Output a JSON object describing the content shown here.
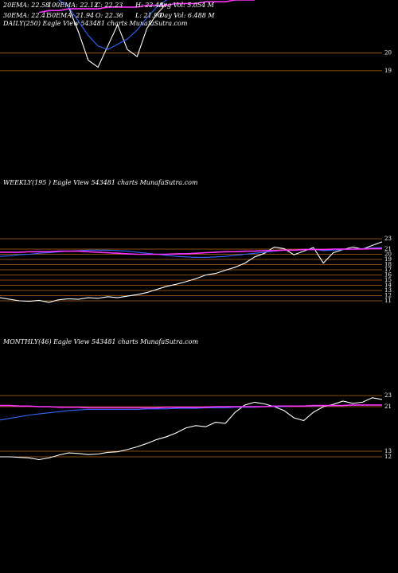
{
  "chart_data": [
    {
      "type": "line",
      "title": "DAILY(250) Eagle View 543481 charts MunafaSutra.com",
      "annotations": [
        [
          "20EMA: 22.58",
          "100EMA: 22.12",
          "C: 22.23",
          "H: 22.48",
          "Avg Vol: 5.054 M"
        ],
        [
          "30EMA: 22.41",
          "50EMA: 21.94",
          "O: 22.36",
          "L: 21.90",
          "Day Vol: 6.488 M"
        ]
      ],
      "ylim": [
        18.5,
        23
      ],
      "yticks": [
        20,
        19
      ],
      "series": [
        {
          "name": "Price",
          "color": "#ffffff",
          "values": [
            null,
            null,
            null,
            null,
            null,
            null,
            null,
            22.6,
            21.2,
            19.6,
            19.2,
            20.4,
            21.6,
            20.2,
            19.8,
            21.4,
            22.2,
            22.8,
            null,
            null,
            null,
            null,
            null,
            null,
            null,
            null,
            null,
            null,
            null,
            null,
            null,
            null,
            null,
            null,
            null,
            null,
            null,
            null,
            null,
            null
          ]
        },
        {
          "name": "EMA",
          "color": "#3366ff",
          "values": [
            null,
            null,
            null,
            null,
            null,
            null,
            23,
            22.6,
            21.8,
            21,
            20.4,
            20.2,
            20.5,
            20.8,
            21.3,
            22,
            22.6,
            23,
            null,
            null,
            null,
            null,
            null,
            null,
            null,
            null,
            null,
            null,
            null,
            null,
            null,
            null,
            null,
            null,
            null,
            null,
            null,
            null,
            null,
            null
          ]
        },
        {
          "name": "Long EMA",
          "color": "#ff33ff",
          "values": [
            null,
            null,
            null,
            null,
            22.3,
            22.4,
            22.4,
            22.5,
            22.5,
            22.5,
            22.5,
            22.6,
            22.6,
            22.6,
            22.6,
            22.7,
            22.7,
            22.7,
            22.8,
            22.8,
            22.8,
            22.9,
            22.9,
            22.9,
            23,
            23,
            23,
            null,
            null,
            null,
            null,
            null,
            null,
            null,
            null,
            null,
            null,
            null,
            null,
            null
          ]
        }
      ]
    },
    {
      "type": "line",
      "title": "WEEKLY(195 ) Eagle View 543481 charts MunafaSutra.com",
      "ylim": [
        10,
        24
      ],
      "yticks": [
        23,
        21,
        20,
        19,
        18,
        17,
        16,
        15,
        14,
        13,
        12,
        11
      ],
      "series": [
        {
          "name": "Price",
          "color": "#ffffff",
          "values": [
            11.6,
            11.3,
            11.0,
            10.9,
            11.1,
            10.7,
            11.2,
            11.4,
            11.3,
            11.6,
            11.5,
            11.8,
            11.6,
            11.9,
            12.2,
            12.6,
            13.2,
            13.8,
            14.2,
            14.7,
            15.3,
            16.0,
            16.3,
            16.9,
            17.5,
            18.3,
            19.5,
            20.2,
            21.4,
            21.1,
            19.9,
            20.6,
            21.3,
            18.3,
            20.3,
            20.9,
            21.4,
            21.0,
            21.7,
            22.4
          ]
        },
        {
          "name": "EMA",
          "color": "#3366ff",
          "values": [
            19.6,
            19.7,
            19.9,
            20.0,
            20.2,
            20.3,
            20.5,
            20.6,
            20.7,
            20.8,
            20.8,
            20.8,
            20.7,
            20.6,
            20.4,
            20.2,
            20.0,
            19.8,
            19.6,
            19.5,
            19.4,
            19.4,
            19.5,
            19.6,
            19.8,
            20.0,
            20.2,
            20.4,
            20.6,
            20.8,
            20.8,
            20.9,
            21.0,
            20.7,
            20.8,
            20.9,
            21.0,
            21.1,
            21.2,
            21.3
          ]
        },
        {
          "name": "Long EMA",
          "color": "#ff33ff",
          "values": [
            20.4,
            20.4,
            20.4,
            20.5,
            20.5,
            20.5,
            20.6,
            20.6,
            20.6,
            20.5,
            20.4,
            20.3,
            20.2,
            20.1,
            20.0,
            20.0,
            20.0,
            20.0,
            20.1,
            20.1,
            20.2,
            20.3,
            20.4,
            20.5,
            20.5,
            20.6,
            20.6,
            20.7,
            20.7,
            20.8,
            20.8,
            20.9,
            20.9,
            20.9,
            21.0,
            21.0,
            21.0,
            21.0,
            21.1,
            21.1
          ]
        }
      ]
    },
    {
      "type": "line",
      "title": "MONTHLY(46) Eagle View 543481 charts MunafaSutra.com",
      "ylim": [
        10,
        24
      ],
      "yticks": [
        23,
        21,
        13,
        12
      ],
      "series": [
        {
          "name": "Price",
          "color": "#ffffff",
          "values": [
            12.0,
            12.0,
            11.9,
            11.8,
            11.5,
            11.8,
            12.3,
            12.7,
            12.6,
            12.4,
            12.5,
            12.8,
            12.9,
            13.3,
            13.8,
            14.4,
            15.1,
            15.6,
            16.3,
            17.2,
            17.6,
            17.4,
            18.2,
            18.0,
            20.0,
            21.3,
            21.8,
            21.5,
            21.0,
            20.3,
            19.0,
            18.5,
            20.0,
            21.0,
            21.4,
            22.0,
            21.6,
            21.8,
            22.6,
            22.3
          ]
        },
        {
          "name": "EMA",
          "color": "#3366ff",
          "values": [
            18.6,
            18.9,
            19.2,
            19.5,
            19.7,
            19.9,
            20.1,
            20.3,
            20.4,
            20.5,
            20.5,
            20.5,
            20.5,
            20.5,
            20.5,
            20.6,
            20.6,
            20.6,
            20.7,
            20.7,
            20.7,
            20.8,
            20.8,
            20.8,
            20.9,
            20.9,
            20.9,
            21.0,
            21.0,
            21.0,
            21.1,
            21.1,
            21.1,
            21.2,
            21.2,
            21.2,
            21.3,
            21.3,
            21.3,
            21.3
          ]
        },
        {
          "name": "Long EMA",
          "color": "#ff33ff",
          "values": [
            21.2,
            21.2,
            21.1,
            21.1,
            21.0,
            21.0,
            20.9,
            20.9,
            20.9,
            20.8,
            20.8,
            20.8,
            20.8,
            20.8,
            20.8,
            20.8,
            20.8,
            20.9,
            20.9,
            20.9,
            20.9,
            20.9,
            21.0,
            21.0,
            21.0,
            21.0,
            21.0,
            21.0,
            21.1,
            21.1,
            21.1,
            21.1,
            21.2,
            21.2,
            21.2,
            21.2,
            21.3,
            21.3,
            21.3,
            21.3
          ]
        }
      ]
    }
  ]
}
